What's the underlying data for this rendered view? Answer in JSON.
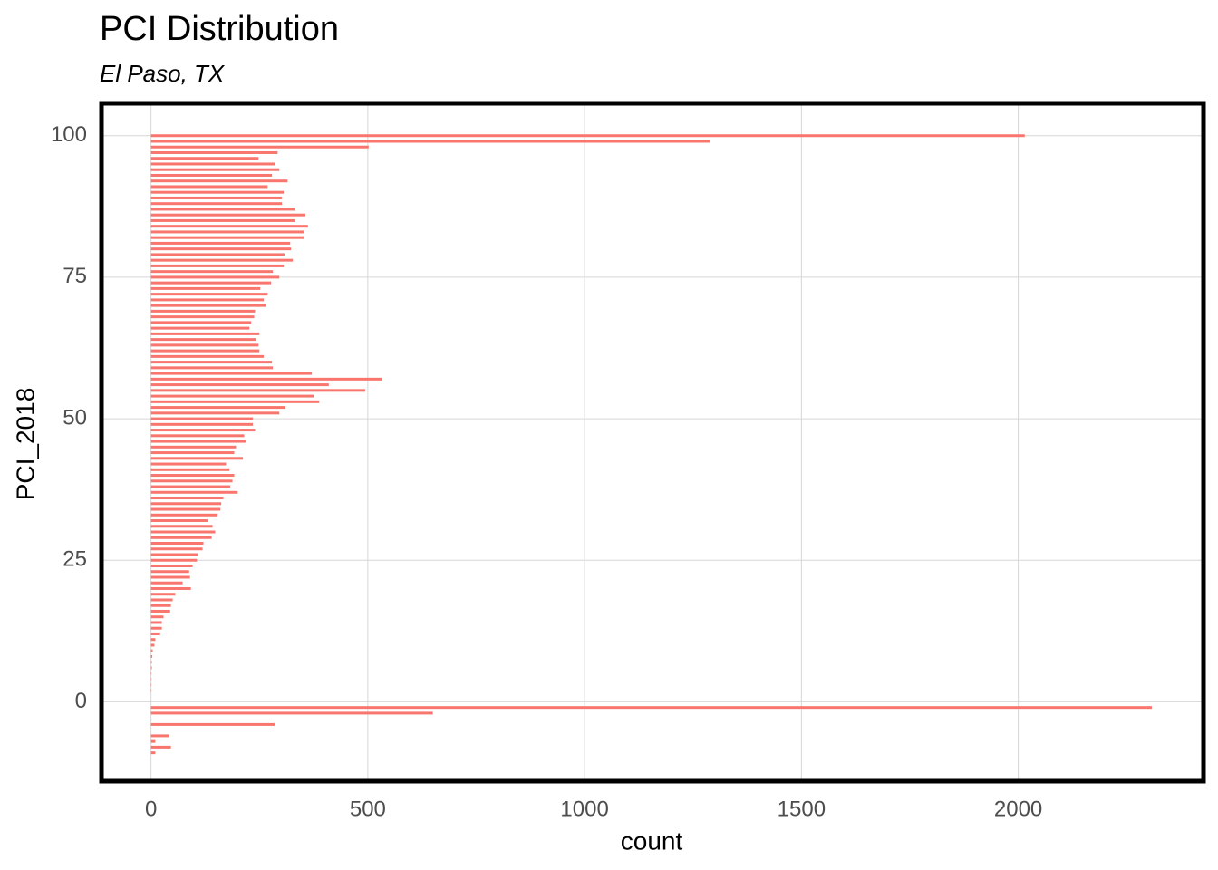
{
  "chart_data": {
    "type": "bar",
    "orientation": "horizontal",
    "title": "PCI Distribution",
    "subtitle": "El Paso, TX",
    "x_label": "count",
    "y_label": "PCI_2018",
    "color": "#f8766d",
    "grid": true,
    "x": [
      -9,
      -8,
      -7,
      -6,
      -5,
      -4,
      -3,
      -2,
      -1,
      0,
      1,
      2,
      3,
      4,
      5,
      6,
      7,
      8,
      9,
      10,
      11,
      12,
      13,
      14,
      15,
      16,
      17,
      18,
      19,
      20,
      21,
      22,
      23,
      24,
      25,
      26,
      27,
      28,
      29,
      30,
      31,
      32,
      33,
      34,
      35,
      36,
      37,
      38,
      39,
      40,
      41,
      42,
      43,
      44,
      45,
      46,
      47,
      48,
      49,
      50,
      51,
      52,
      53,
      54,
      55,
      56,
      57,
      58,
      59,
      60,
      61,
      62,
      63,
      64,
      65,
      66,
      67,
      68,
      69,
      70,
      71,
      72,
      73,
      74,
      75,
      76,
      77,
      78,
      79,
      80,
      81,
      82,
      83,
      84,
      85,
      86,
      87,
      88,
      89,
      90,
      91,
      92,
      93,
      94,
      95,
      96,
      97,
      98,
      99,
      100
    ],
    "values": [
      10,
      46,
      10,
      42,
      0,
      285,
      0,
      650,
      2308,
      0,
      0,
      1,
      1,
      1,
      1,
      2,
      2,
      3,
      4,
      8,
      10,
      21,
      25,
      25,
      29,
      44,
      46,
      50,
      56,
      92,
      73,
      90,
      88,
      96,
      106,
      108,
      119,
      121,
      140,
      148,
      142,
      131,
      154,
      160,
      162,
      167,
      200,
      183,
      188,
      192,
      181,
      173,
      212,
      192,
      196,
      219,
      215,
      240,
      235,
      235,
      296,
      310,
      388,
      375,
      494,
      410,
      533,
      371,
      281,
      279,
      260,
      250,
      248,
      242,
      250,
      227,
      231,
      238,
      240,
      265,
      260,
      269,
      252,
      277,
      296,
      281,
      306,
      327,
      308,
      323,
      321,
      352,
      352,
      362,
      333,
      356,
      333,
      302,
      302,
      306,
      269,
      315,
      279,
      296,
      285,
      248,
      292,
      502,
      1288,
      2015
    ],
    "xlim": [
      -110,
      2423
    ],
    "xticks": [
      0,
      500,
      1000,
      1500,
      2000
    ],
    "ylim": [
      -13.7,
      105.4
    ],
    "yticks": [
      0,
      25,
      50,
      75,
      100
    ]
  }
}
